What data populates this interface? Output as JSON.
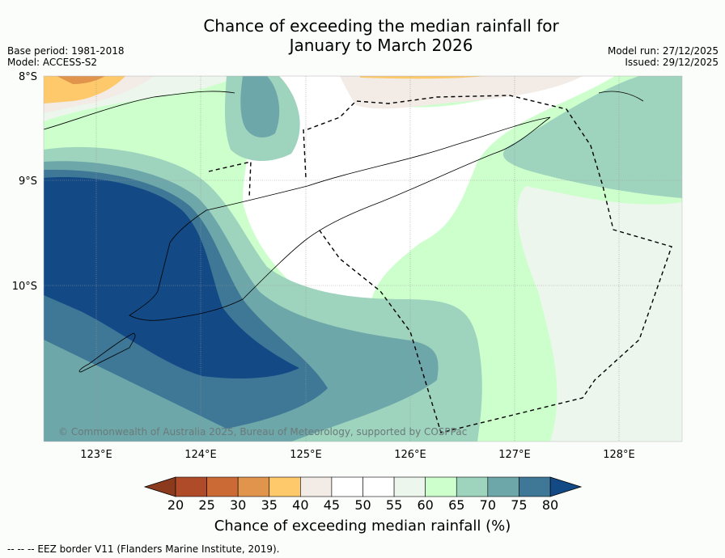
{
  "title": {
    "line1": "Chance of exceeding the median rainfall for",
    "line2": "January to March 2026"
  },
  "meta_left": {
    "base_period": "Base period: 1981-2018",
    "model": "Model: ACCESS-S2"
  },
  "meta_right": {
    "model_run": "Model run: 27/12/2025",
    "issued": "Issued: 29/12/2025"
  },
  "map": {
    "lat_labels": [
      "8°S",
      "9°S",
      "10°S"
    ],
    "lon_labels": [
      "123°E",
      "124°E",
      "125°E",
      "126°E",
      "127°E",
      "128°E"
    ],
    "copyright": "© Commonwealth of Australia 2025, Bureau of Meteorology, supported by COSPPac"
  },
  "colorbar": {
    "ticks": [
      "20",
      "25",
      "30",
      "35",
      "40",
      "45",
      "50",
      "55",
      "60",
      "65",
      "70",
      "75",
      "80"
    ],
    "below_color": "#8b3a1e",
    "above_color": "#134a86",
    "bin_colors": [
      "#b04b2a",
      "#cc6a36",
      "#e0944c",
      "#fdc96a",
      "#f2ebe6",
      "#ffffff",
      "#ffffff",
      "#ecf6ec",
      "#ccffcc",
      "#9ed3bd",
      "#6ea7a9",
      "#3f7896"
    ],
    "title": "Chance of exceeding median rainfall (%)"
  },
  "footnote": "--  --  -- EEZ border V11 (Flanders Marine Institute, 2019)."
}
